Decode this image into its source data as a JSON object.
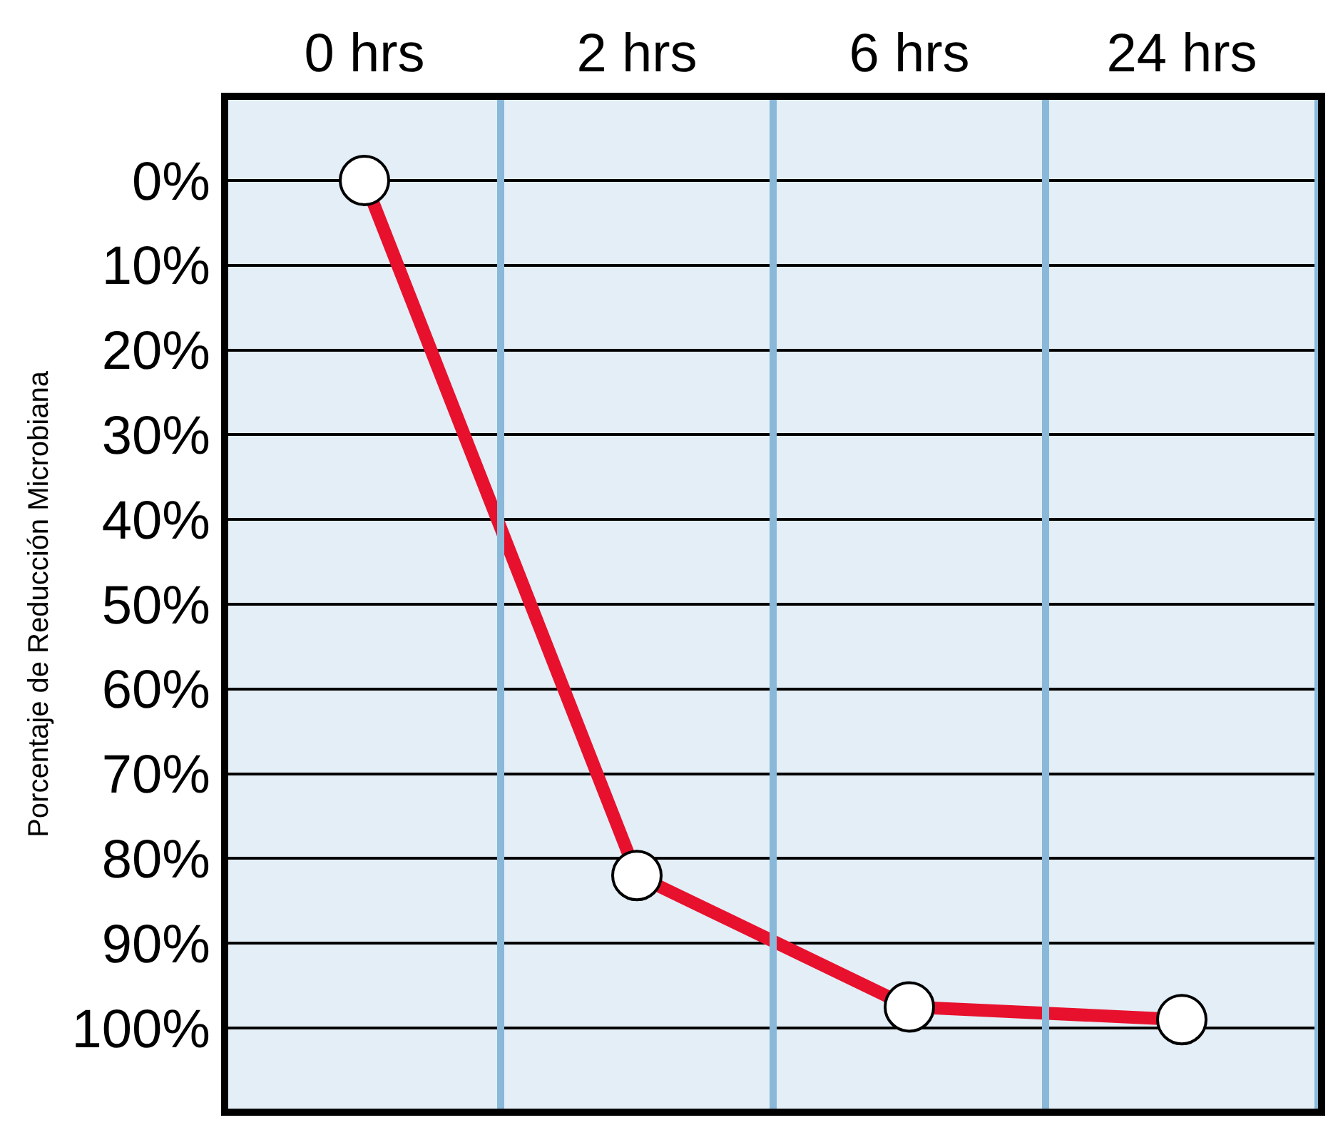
{
  "chart_data": {
    "type": "line",
    "ylabel": "Porcentaje de Reducción Microbiana",
    "categories": [
      "0 hrs",
      "2 hrs",
      "6 hrs",
      "24 hrs"
    ],
    "series": [
      {
        "color": "#e8112d",
        "values": [
          0,
          82,
          97.5,
          99
        ]
      }
    ],
    "ylim": [
      109.5,
      -9.5
    ],
    "yticks": [
      {
        "value": 0,
        "label": "0%"
      },
      {
        "value": 10,
        "label": "10%"
      },
      {
        "value": 20,
        "label": "20%"
      },
      {
        "value": 30,
        "label": "30%"
      },
      {
        "value": 40,
        "label": "40%"
      },
      {
        "value": 50,
        "label": "50%"
      },
      {
        "value": 60,
        "label": "60%"
      },
      {
        "value": 70,
        "label": "70%"
      },
      {
        "value": 80,
        "label": "80%"
      },
      {
        "value": 90,
        "label": "90%"
      },
      {
        "value": 100,
        "label": "100%"
      }
    ],
    "grid": true,
    "marker": "circle",
    "line_style": "solid"
  }
}
